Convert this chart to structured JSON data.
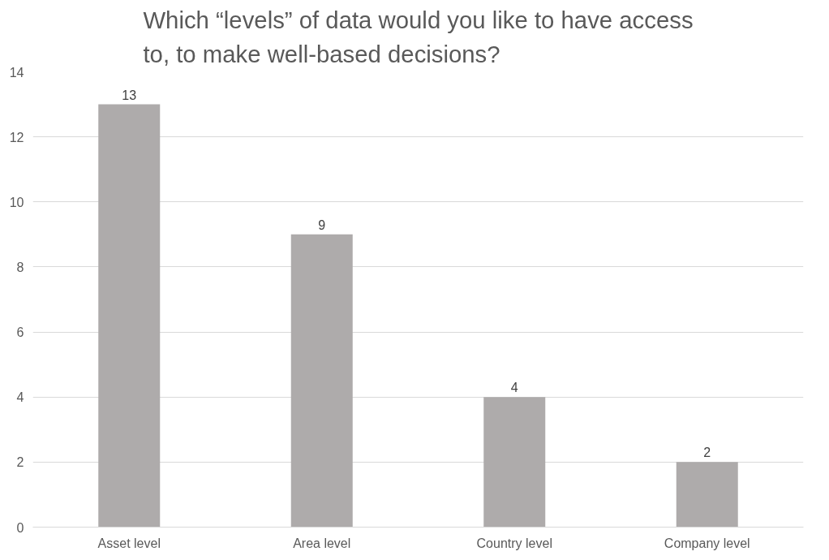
{
  "chart_data": {
    "type": "bar",
    "title": "Which “levels” of data would you like to have access to, to make well-based decisions?",
    "categories": [
      "Asset level",
      "Area level",
      "Country level",
      "Company level"
    ],
    "values": [
      13,
      9,
      4,
      2
    ],
    "color": "#aeabab",
    "ylim": [
      0,
      14
    ],
    "yticks": [
      0,
      2,
      4,
      6,
      8,
      10,
      12,
      14
    ],
    "grid": "y",
    "data_labels": true
  }
}
